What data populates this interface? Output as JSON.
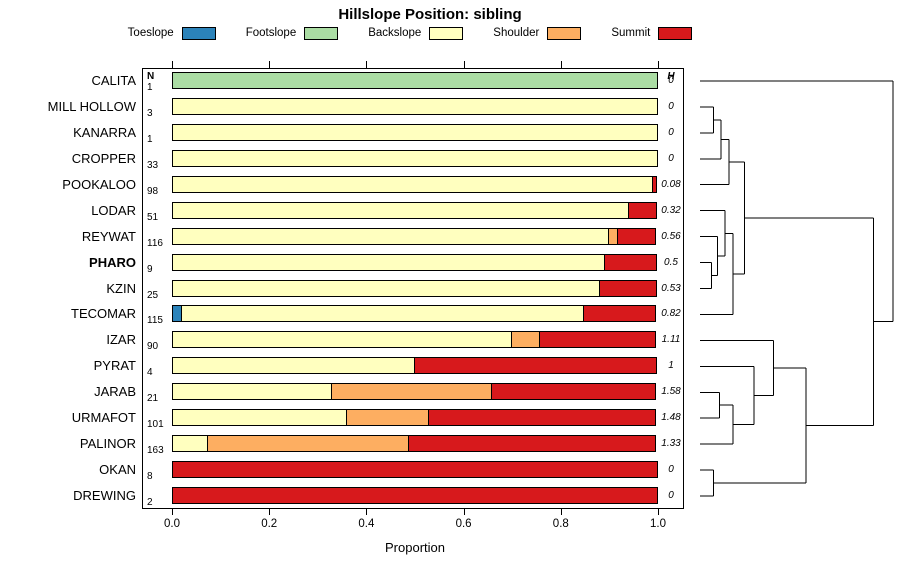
{
  "title": "Hillslope Position: sibling",
  "legend": {
    "items": [
      {
        "label": "Toeslope",
        "color": "#2B83BA"
      },
      {
        "label": "Footslope",
        "color": "#ABDDA4"
      },
      {
        "label": "Backslope",
        "color": "#FFFFBF"
      },
      {
        "label": "Shoulder",
        "color": "#FDAE61"
      },
      {
        "label": "Summit",
        "color": "#D7191C"
      }
    ]
  },
  "chart_data": {
    "type": "bar",
    "variant": "horizontal-stacked-proportion",
    "title": "Hillslope Position: sibling",
    "xlabel": "Proportion",
    "xlim": [
      0,
      1
    ],
    "x_ticks": [
      "0.0",
      "0.2",
      "0.4",
      "0.6",
      "0.8",
      "1.0"
    ],
    "grid": false,
    "legend_position": "top",
    "n_column_header": "N",
    "h_column_header": "H",
    "series_order": [
      "Toeslope",
      "Footslope",
      "Backslope",
      "Shoulder",
      "Summit"
    ],
    "colors": {
      "Toeslope": "#2B83BA",
      "Footslope": "#ABDDA4",
      "Backslope": "#FFFFBF",
      "Shoulder": "#FDAE61",
      "Summit": "#D7191C"
    },
    "rows": [
      {
        "label": "CALITA",
        "n": 1,
        "h": "0",
        "segments": [
          {
            "name": "Footslope",
            "value": 1.0
          }
        ]
      },
      {
        "label": "MILL HOLLOW",
        "n": 3,
        "h": "0",
        "segments": [
          {
            "name": "Backslope",
            "value": 1.0
          }
        ]
      },
      {
        "label": "KANARRA",
        "n": 1,
        "h": "0",
        "segments": [
          {
            "name": "Backslope",
            "value": 1.0
          }
        ]
      },
      {
        "label": "CROPPER",
        "n": 33,
        "h": "0",
        "segments": [
          {
            "name": "Backslope",
            "value": 1.0
          }
        ]
      },
      {
        "label": "POOKALOO",
        "n": 98,
        "h": "0.08",
        "segments": [
          {
            "name": "Backslope",
            "value": 0.99
          },
          {
            "name": "Summit",
            "value": 0.01
          }
        ]
      },
      {
        "label": "LODAR",
        "n": 51,
        "h": "0.32",
        "segments": [
          {
            "name": "Backslope",
            "value": 0.94
          },
          {
            "name": "Summit",
            "value": 0.06
          }
        ]
      },
      {
        "label": "REYWAT",
        "n": 116,
        "h": "0.56",
        "segments": [
          {
            "name": "Backslope",
            "value": 0.9
          },
          {
            "name": "Shoulder",
            "value": 0.02
          },
          {
            "name": "Summit",
            "value": 0.08
          }
        ]
      },
      {
        "label": "PHARO",
        "n": 9,
        "h": "0.5",
        "bold": true,
        "segments": [
          {
            "name": "Backslope",
            "value": 0.89
          },
          {
            "name": "Summit",
            "value": 0.11
          }
        ]
      },
      {
        "label": "KZIN",
        "n": 25,
        "h": "0.53",
        "segments": [
          {
            "name": "Backslope",
            "value": 0.88
          },
          {
            "name": "Summit",
            "value": 0.12
          }
        ]
      },
      {
        "label": "TECOMAR",
        "n": 115,
        "h": "0.82",
        "segments": [
          {
            "name": "Toeslope",
            "value": 0.02
          },
          {
            "name": "Backslope",
            "value": 0.83
          },
          {
            "name": "Summit",
            "value": 0.15
          }
        ]
      },
      {
        "label": "IZAR",
        "n": 90,
        "h": "1.11",
        "segments": [
          {
            "name": "Backslope",
            "value": 0.7
          },
          {
            "name": "Shoulder",
            "value": 0.06
          },
          {
            "name": "Summit",
            "value": 0.24
          }
        ]
      },
      {
        "label": "PYRAT",
        "n": 4,
        "h": "1",
        "segments": [
          {
            "name": "Backslope",
            "value": 0.5
          },
          {
            "name": "Summit",
            "value": 0.5
          }
        ]
      },
      {
        "label": "JARAB",
        "n": 21,
        "h": "1.58",
        "segments": [
          {
            "name": "Backslope",
            "value": 0.33
          },
          {
            "name": "Shoulder",
            "value": 0.33
          },
          {
            "name": "Summit",
            "value": 0.34
          }
        ]
      },
      {
        "label": "URMAFOT",
        "n": 101,
        "h": "1.48",
        "segments": [
          {
            "name": "Backslope",
            "value": 0.36
          },
          {
            "name": "Shoulder",
            "value": 0.17
          },
          {
            "name": "Summit",
            "value": 0.47
          }
        ]
      },
      {
        "label": "PALINOR",
        "n": 163,
        "h": "1.33",
        "segments": [
          {
            "name": "Backslope",
            "value": 0.075
          },
          {
            "name": "Shoulder",
            "value": 0.415
          },
          {
            "name": "Summit",
            "value": 0.51
          }
        ]
      },
      {
        "label": "OKAN",
        "n": 8,
        "h": "0",
        "segments": [
          {
            "name": "Summit",
            "value": 1.0
          }
        ]
      },
      {
        "label": "DREWING",
        "n": 2,
        "h": "0",
        "segments": [
          {
            "name": "Summit",
            "value": 1.0
          }
        ]
      }
    ],
    "dendrogram": {
      "orientation": "right-of-rows",
      "coords_note": "x is 0-1 fraction of dendrogram width (merge height), y is row index units",
      "segments": [
        [
          0,
          1,
          0.07,
          1
        ],
        [
          0,
          2,
          0.07,
          2
        ],
        [
          0.07,
          1,
          0.07,
          2
        ],
        [
          0.07,
          1.5,
          0.11,
          1.5
        ],
        [
          0,
          3,
          0.11,
          3
        ],
        [
          0.11,
          1.5,
          0.11,
          3
        ],
        [
          0.11,
          2.25,
          0.15,
          2.25
        ],
        [
          0,
          4,
          0.15,
          4
        ],
        [
          0.15,
          2.25,
          0.15,
          4
        ],
        [
          0,
          7,
          0.06,
          7
        ],
        [
          0,
          8,
          0.06,
          8
        ],
        [
          0.06,
          7,
          0.06,
          8
        ],
        [
          0,
          6,
          0.09,
          6
        ],
        [
          0.06,
          7.5,
          0.09,
          7.5
        ],
        [
          0.09,
          6,
          0.09,
          7.5
        ],
        [
          0,
          5,
          0.13,
          5
        ],
        [
          0.09,
          6.75,
          0.13,
          6.75
        ],
        [
          0.13,
          5,
          0.13,
          6.75
        ],
        [
          0.13,
          5.875,
          0.17,
          5.875
        ],
        [
          0,
          9,
          0.17,
          9
        ],
        [
          0.17,
          5.875,
          0.17,
          9
        ],
        [
          0.15,
          3.125,
          0.23,
          3.125
        ],
        [
          0.17,
          7.4375,
          0.23,
          7.4375
        ],
        [
          0.23,
          3.125,
          0.23,
          7.4375
        ],
        [
          0,
          15,
          0.07,
          15
        ],
        [
          0,
          16,
          0.07,
          16
        ],
        [
          0.07,
          15,
          0.07,
          16
        ],
        [
          0,
          12,
          0.1,
          12
        ],
        [
          0,
          13,
          0.1,
          13
        ],
        [
          0.1,
          12,
          0.1,
          13
        ],
        [
          0.1,
          12.5,
          0.17,
          12.5
        ],
        [
          0,
          14,
          0.17,
          14
        ],
        [
          0.17,
          12.5,
          0.17,
          14
        ],
        [
          0,
          11,
          0.28,
          11
        ],
        [
          0.17,
          13.25,
          0.28,
          13.25
        ],
        [
          0.28,
          11,
          0.28,
          13.25
        ],
        [
          0,
          10,
          0.38,
          10
        ],
        [
          0.28,
          12.125,
          0.38,
          12.125
        ],
        [
          0.38,
          10,
          0.38,
          12.125
        ],
        [
          0.38,
          11.0625,
          0.55,
          11.0625
        ],
        [
          0.07,
          15.5,
          0.55,
          15.5
        ],
        [
          0.55,
          11.0625,
          0.55,
          15.5
        ],
        [
          0.23,
          5.28125,
          0.9,
          5.28125
        ],
        [
          0.55,
          13.28125,
          0.9,
          13.28125
        ],
        [
          0.9,
          5.28125,
          0.9,
          13.28125
        ],
        [
          0,
          0,
          1,
          0
        ],
        [
          0.9,
          9.28125,
          1,
          9.28125
        ],
        [
          1,
          0,
          1,
          9.28125
        ]
      ]
    }
  }
}
